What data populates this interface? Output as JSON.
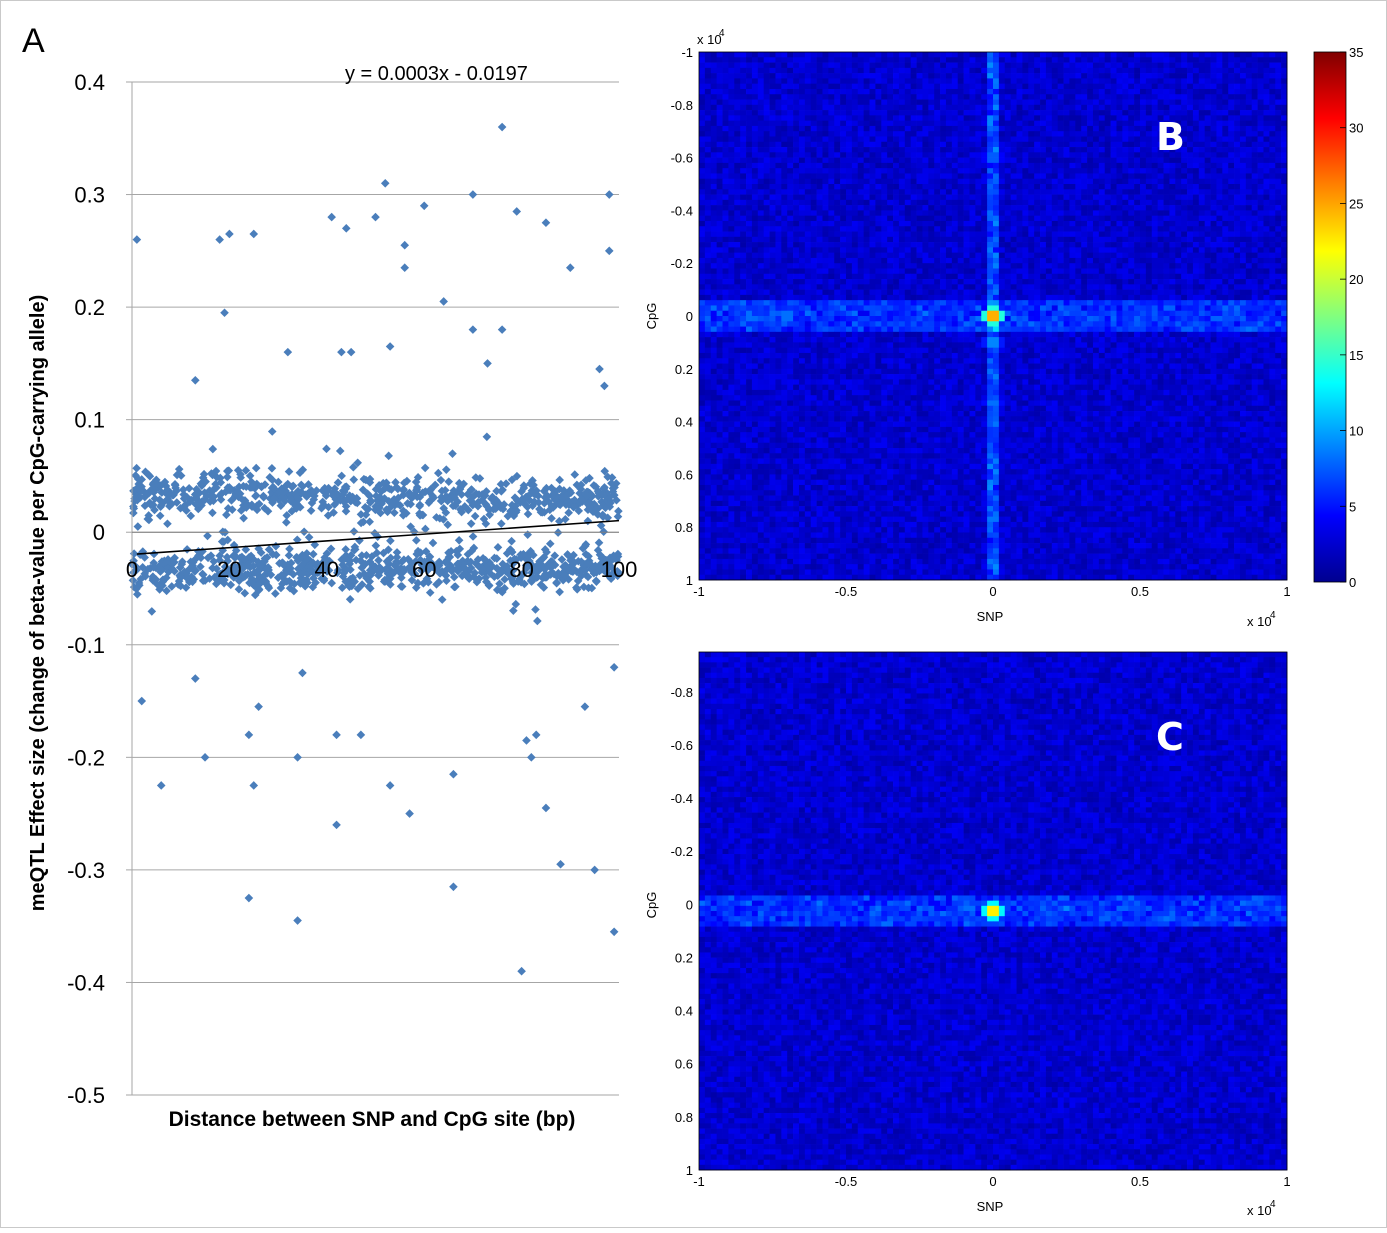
{
  "figure": {
    "panel_a_letter": "A",
    "panel_b_letter": "B",
    "panel_c_letter": "C"
  },
  "chart_data": [
    {
      "panel": "A",
      "type": "scatter",
      "xlabel": "Distance between SNP and CpG site (bp)",
      "ylabel": "meQTL Effect size (change of beta-value per CpG-carrying allele)",
      "xlim": [
        0,
        100
      ],
      "ylim": [
        -0.5,
        0.4
      ],
      "x_ticks": [
        "0",
        "20",
        "40",
        "60",
        "80",
        "100"
      ],
      "y_ticks": [
        "0.4",
        "0.3",
        "0.2",
        "0.1",
        "0",
        "-0.1",
        "-0.2",
        "-0.3",
        "-0.4",
        "-0.5"
      ],
      "grid": "horizontal",
      "marker_color": "#4a7ebb",
      "trendline": {
        "equation": "y = 0.0003x - 0.0197",
        "slope": 0.0003,
        "intercept": -0.0197,
        "color": "#000000"
      },
      "series": [
        {
          "points_note_outliers": "x,y pairs for visibly isolated points",
          "outliers": [
            [
              1,
              0.26
            ],
            [
              2,
              -0.15
            ],
            [
              6,
              -0.225
            ],
            [
              13,
              0.135
            ],
            [
              13,
              -0.13
            ],
            [
              15,
              -0.2
            ],
            [
              18,
              0.26
            ],
            [
              19,
              0.195
            ],
            [
              20,
              0.265
            ],
            [
              24,
              -0.18
            ],
            [
              25,
              0.265
            ],
            [
              24,
              -0.325
            ],
            [
              25,
              -0.225
            ],
            [
              26,
              -0.155
            ],
            [
              32,
              0.16
            ],
            [
              34,
              -0.2
            ],
            [
              34,
              -0.345
            ],
            [
              35,
              -0.125
            ],
            [
              41,
              0.28
            ],
            [
              42,
              -0.26
            ],
            [
              42,
              -0.18
            ],
            [
              43,
              0.16
            ],
            [
              44,
              0.27
            ],
            [
              45,
              0.16
            ],
            [
              47,
              -0.18
            ],
            [
              50,
              0.28
            ],
            [
              52,
              0.31
            ],
            [
              53,
              0.165
            ],
            [
              53,
              -0.225
            ],
            [
              56,
              0.255
            ],
            [
              56,
              0.235
            ],
            [
              57,
              -0.25
            ],
            [
              60,
              0.29
            ],
            [
              64,
              0.205
            ],
            [
              66,
              -0.215
            ],
            [
              66,
              -0.315
            ],
            [
              70,
              0.3
            ],
            [
              70,
              0.18
            ],
            [
              73,
              0.15
            ],
            [
              76,
              0.36
            ],
            [
              76,
              0.18
            ],
            [
              79,
              0.285
            ],
            [
              80,
              -0.39
            ],
            [
              81,
              -0.185
            ],
            [
              82,
              -0.2
            ],
            [
              83,
              -0.18
            ],
            [
              85,
              0.275
            ],
            [
              85,
              -0.245
            ],
            [
              88,
              -0.295
            ],
            [
              90,
              0.235
            ],
            [
              93,
              -0.155
            ],
            [
              95,
              -0.3
            ],
            [
              98,
              0.3
            ],
            [
              98,
              0.25
            ],
            [
              99,
              -0.12
            ],
            [
              99,
              -0.355
            ],
            [
              96,
              0.145
            ],
            [
              97,
              0.13
            ]
          ],
          "bulk": {
            "count": 1400,
            "x_range": [
              0,
              100
            ],
            "upper_band_center_at_x0": 0.035,
            "upper_band_center_at_x100": 0.03,
            "lower_band_center_at_x0": -0.035,
            "lower_band_center_at_x100": -0.03,
            "spread": 0.05
          }
        }
      ]
    },
    {
      "panel": "B",
      "type": "heatmap",
      "xlabel": "SNP",
      "ylabel": "CpG",
      "x_exponent_label": "x 10",
      "x_exponent_power": "4",
      "y_exponent_label": "x 10",
      "y_exponent_power": "4",
      "xlim": [
        -1,
        1
      ],
      "ylim": [
        -1,
        1
      ],
      "x_ticks": [
        "-1",
        "-0.5",
        "0",
        "0.5",
        "1"
      ],
      "y_ticks": [
        "-1",
        "-0.8",
        "-0.6",
        "-0.4",
        "-0.2",
        "0",
        "0.2",
        "0.4",
        "0.6",
        "0.8",
        "1"
      ],
      "grid_bins": 100,
      "colormap": "jet",
      "hotspots": [
        {
          "x": 0,
          "y": 0,
          "value": 33
        },
        {
          "x": 0,
          "y": -0.6,
          "value": 10
        },
        {
          "x": 0,
          "y": 0.33,
          "value": 10
        },
        {
          "x": -0.7,
          "y": 0,
          "value": 11
        },
        {
          "x": -0.83,
          "y": 0,
          "value": 10
        },
        {
          "x": 0,
          "y": 0.1,
          "value": 12
        }
      ]
    },
    {
      "panel": "C",
      "type": "heatmap",
      "xlabel": "SNP",
      "ylabel": "CpG",
      "x_exponent_label": "x 10",
      "x_exponent_power": "4",
      "xlim": [
        -1,
        1
      ],
      "ylim": [
        -1,
        1
      ],
      "x_ticks": [
        "-1",
        "-0.5",
        "0",
        "0.5",
        "1"
      ],
      "y_ticks": [
        "-0.8",
        "-0.6",
        "-0.4",
        "-0.2",
        "0",
        "0.2",
        "0.4",
        "0.6",
        "0.8",
        "1"
      ],
      "grid_bins": 100,
      "colormap": "jet",
      "hotspots": [
        {
          "x": 0,
          "y": 0,
          "value": 30
        },
        {
          "x": -0.08,
          "y": -0.01,
          "value": 10
        },
        {
          "x": 0.25,
          "y": -0.01,
          "value": 9
        }
      ]
    },
    {
      "panel": "colorbar",
      "type": "colorbar",
      "colormap": "jet",
      "range": [
        0,
        35
      ],
      "ticks": [
        "35",
        "30",
        "25",
        "20",
        "15",
        "10",
        "5",
        "0"
      ]
    }
  ]
}
